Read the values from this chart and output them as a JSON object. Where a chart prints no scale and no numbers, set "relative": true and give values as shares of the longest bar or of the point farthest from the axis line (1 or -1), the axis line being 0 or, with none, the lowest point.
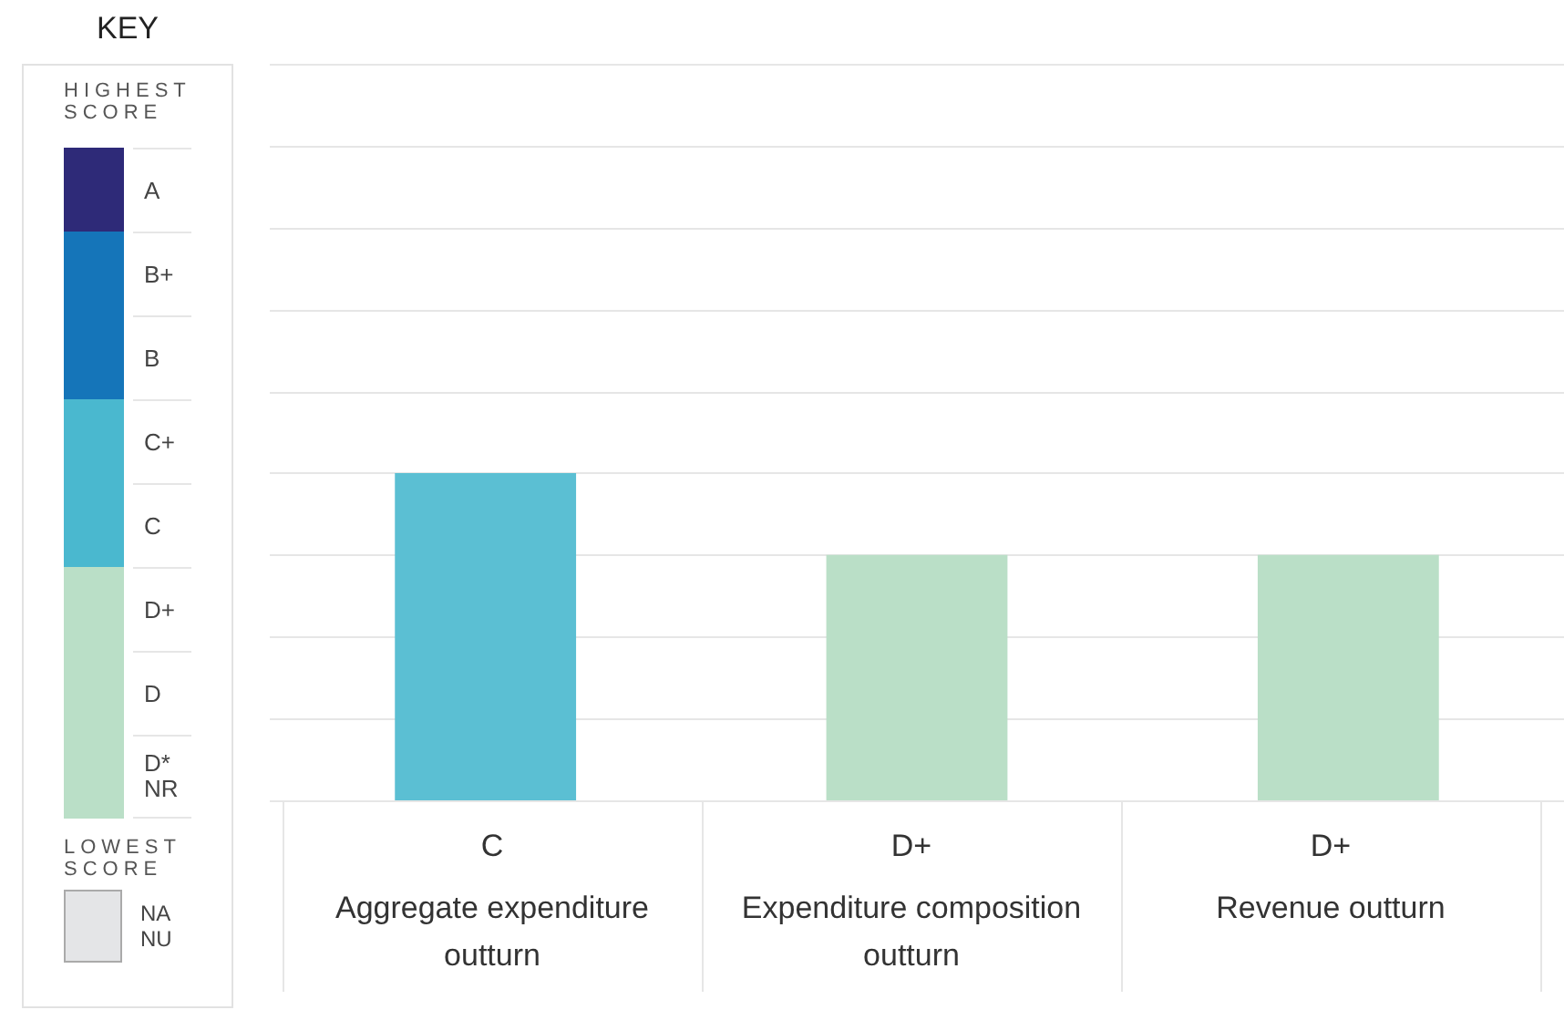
{
  "chart_data": {
    "type": "bar",
    "relative": true,
    "grid": "y",
    "legend": false,
    "legend_title": "KEY",
    "categories": [
      "Aggregate expenditure outturn",
      "Expenditure composition outturn",
      "Revenue outturn"
    ],
    "values": [
      1,
      0.75,
      0.75
    ],
    "colors": [
      "#5bbfd3",
      "#badfc7",
      "#badfc7"
    ],
    "annotations": [
      "HIGHEST SCORE",
      "A",
      "B+",
      "B",
      "C+",
      "C",
      "D+",
      "D",
      "D*",
      "NR",
      "LOWEST SCORE",
      "NA",
      "NU",
      "C",
      "D+",
      "D+"
    ]
  }
}
